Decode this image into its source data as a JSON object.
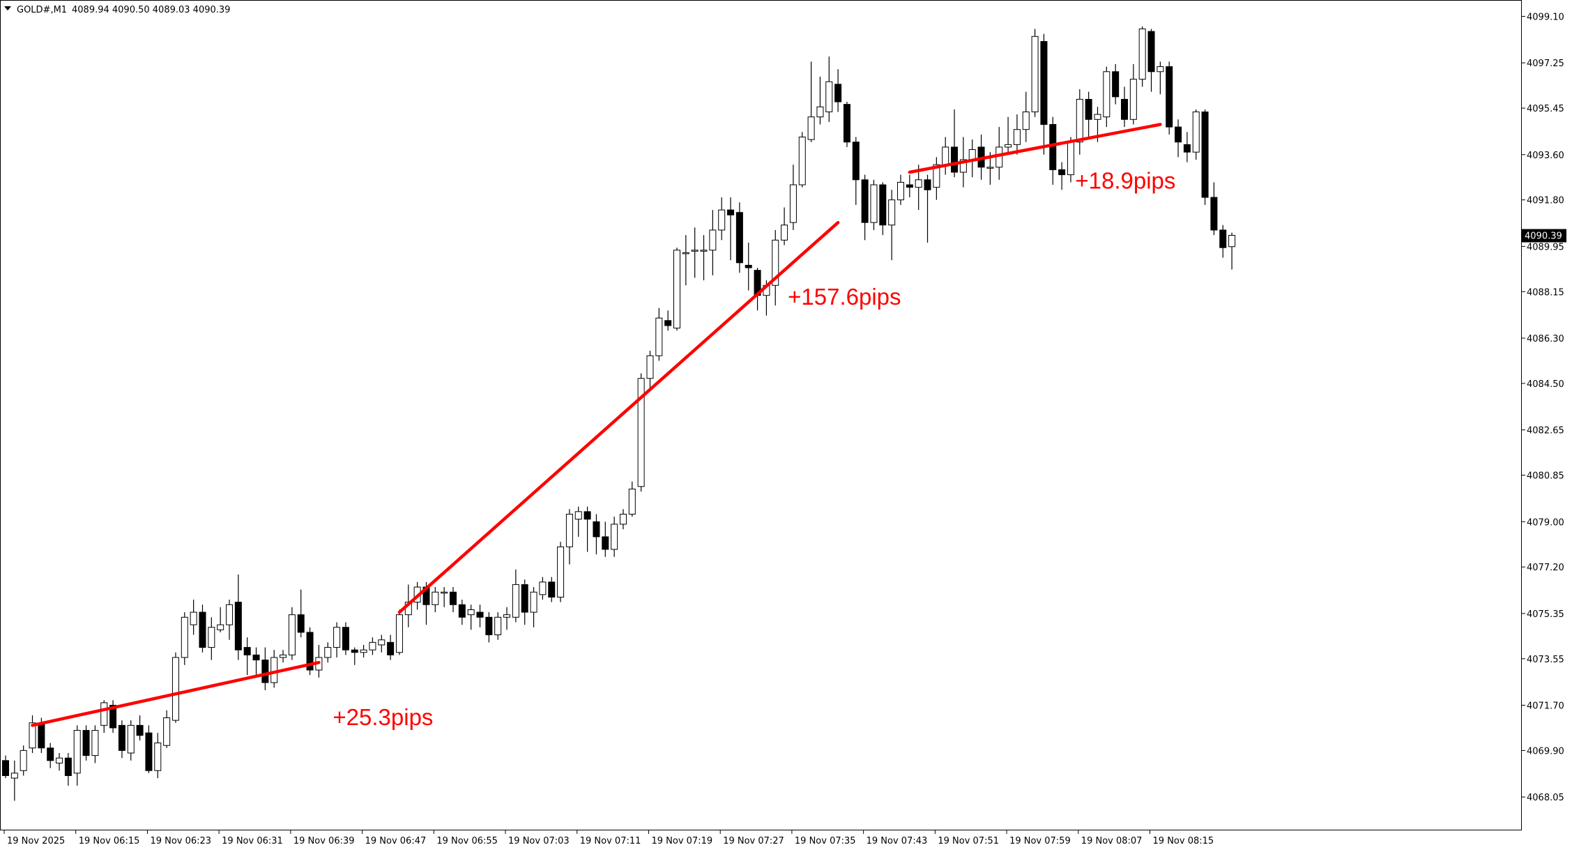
{
  "header": {
    "symbol": "GOLD#,M1",
    "ohlc": "4089.94 4090.50 4089.03 4090.39"
  },
  "current_price_label": "4090.39",
  "colors": {
    "background": "#ffffff",
    "candle_up_fill": "#ffffff",
    "candle_down_fill": "#000000",
    "candle_outline": "#000000",
    "annotation": "#ff0000",
    "current_price_tag": "#000000"
  },
  "chart_data": {
    "type": "candlestick",
    "timeframe": "M1",
    "ylim": [
      4066.75,
      4099.75
    ],
    "y_ticks": [
      "4099.10",
      "4097.25",
      "4095.45",
      "4093.60",
      "4091.80",
      "4089.95",
      "4088.15",
      "4086.30",
      "4084.50",
      "4082.65",
      "4080.85",
      "4079.00",
      "4077.20",
      "4075.35",
      "4073.55",
      "4071.70",
      "4069.90",
      "4068.05"
    ],
    "x_ticks": [
      {
        "label": "19 Nov 2025",
        "bar": 0
      },
      {
        "label": "19 Nov 06:15",
        "bar": 8
      },
      {
        "label": "19 Nov 06:23",
        "bar": 16
      },
      {
        "label": "19 Nov 06:31",
        "bar": 24
      },
      {
        "label": "19 Nov 06:39",
        "bar": 32
      },
      {
        "label": "19 Nov 06:47",
        "bar": 40
      },
      {
        "label": "19 Nov 06:55",
        "bar": 48
      },
      {
        "label": "19 Nov 07:03",
        "bar": 56
      },
      {
        "label": "19 Nov 07:11",
        "bar": 64
      },
      {
        "label": "19 Nov 07:19",
        "bar": 72
      },
      {
        "label": "19 Nov 07:27",
        "bar": 80
      },
      {
        "label": "19 Nov 07:35",
        "bar": 88
      },
      {
        "label": "19 Nov 07:43",
        "bar": 96
      },
      {
        "label": "19 Nov 07:51",
        "bar": 104
      },
      {
        "label": "19 Nov 07:59",
        "bar": 112
      },
      {
        "label": "19 Nov 08:07",
        "bar": 120
      },
      {
        "label": "19 Nov 08:15",
        "bar": 128
      }
    ],
    "candles": [
      [
        4069.5,
        4068.9,
        4069.7,
        4068.8
      ],
      [
        4068.8,
        4069.0,
        4069.5,
        4067.9
      ],
      [
        4069.1,
        4069.9,
        4070.1,
        4068.9
      ],
      [
        4070.0,
        4071.0,
        4071.3,
        4069.8
      ],
      [
        4071.0,
        4070.0,
        4071.2,
        4069.8
      ],
      [
        4070.0,
        4069.5,
        4070.2,
        4069.2
      ],
      [
        4069.4,
        4069.6,
        4069.8,
        4069.1
      ],
      [
        4069.6,
        4068.9,
        4069.8,
        4068.5
      ],
      [
        4069.0,
        4070.7,
        4070.9,
        4068.5
      ],
      [
        4070.7,
        4069.7,
        4070.9,
        4069.5
      ],
      [
        4069.7,
        4070.7,
        4070.9,
        4069.4
      ],
      [
        4070.9,
        4071.8,
        4071.9,
        4070.6
      ],
      [
        4071.7,
        4070.8,
        4071.9,
        4070.6
      ],
      [
        4070.9,
        4069.9,
        4071.1,
        4069.6
      ],
      [
        4069.8,
        4070.9,
        4071.1,
        4069.5
      ],
      [
        4070.9,
        4070.5,
        4071.3,
        4070.3
      ],
      [
        4070.6,
        4069.1,
        4070.9,
        4069.0
      ],
      [
        4069.1,
        4070.2,
        4070.6,
        4068.8
      ],
      [
        4070.1,
        4071.2,
        4071.5,
        4070.0
      ],
      [
        4071.1,
        4073.6,
        4073.8,
        4071.0
      ],
      [
        4073.6,
        4075.2,
        4075.4,
        4073.3
      ],
      [
        4074.9,
        4075.4,
        4075.9,
        4074.5
      ],
      [
        4075.4,
        4074.0,
        4075.7,
        4073.8
      ],
      [
        4074.0,
        4074.8,
        4075.2,
        4073.5
      ],
      [
        4074.7,
        4074.9,
        4075.6,
        4074.6
      ],
      [
        4074.9,
        4075.7,
        4075.9,
        4074.3
      ],
      [
        4075.8,
        4073.9,
        4076.9,
        4073.5
      ],
      [
        4074.0,
        4073.7,
        4074.4,
        4072.9
      ],
      [
        4073.7,
        4073.5,
        4074.0,
        4072.9
      ],
      [
        4073.5,
        4072.6,
        4074.0,
        4072.3
      ],
      [
        4072.6,
        4073.6,
        4073.9,
        4072.4
      ],
      [
        4073.6,
        4073.7,
        4073.9,
        4073.4
      ],
      [
        4073.7,
        4075.3,
        4075.6,
        4073.5
      ],
      [
        4075.3,
        4074.6,
        4076.3,
        4074.4
      ],
      [
        4074.6,
        4073.1,
        4074.8,
        4072.9
      ],
      [
        4073.1,
        4073.6,
        4074.1,
        4072.8
      ],
      [
        4073.6,
        4074.0,
        4074.2,
        4073.4
      ],
      [
        4074.0,
        4074.8,
        4075.0,
        4073.6
      ],
      [
        4074.8,
        4073.9,
        4075.0,
        4073.7
      ],
      [
        4073.9,
        4073.8,
        4074.0,
        4073.3
      ],
      [
        4073.8,
        4073.9,
        4074.1,
        4073.6
      ],
      [
        4073.9,
        4074.2,
        4074.4,
        4073.7
      ],
      [
        4074.1,
        4074.3,
        4074.5,
        4073.8
      ],
      [
        4074.2,
        4073.7,
        4074.5,
        4073.5
      ],
      [
        4073.8,
        4075.3,
        4075.5,
        4073.7
      ],
      [
        4075.3,
        4075.8,
        4076.5,
        4074.8
      ],
      [
        4075.8,
        4076.4,
        4076.6,
        4075.5
      ],
      [
        4076.4,
        4075.7,
        4076.6,
        4074.9
      ],
      [
        4075.7,
        4076.2,
        4076.4,
        4075.4
      ],
      [
        4076.2,
        4076.2,
        4076.4,
        4075.6
      ],
      [
        4076.2,
        4075.7,
        4076.4,
        4075.4
      ],
      [
        4075.7,
        4075.2,
        4075.9,
        4074.9
      ],
      [
        4075.3,
        4075.5,
        4075.7,
        4074.7
      ],
      [
        4075.4,
        4075.2,
        4075.7,
        4074.8
      ],
      [
        4075.2,
        4074.5,
        4075.4,
        4074.2
      ],
      [
        4074.5,
        4075.2,
        4075.4,
        4074.3
      ],
      [
        4075.2,
        4075.3,
        4075.6,
        4074.7
      ],
      [
        4075.2,
        4076.5,
        4077.1,
        4075.0
      ],
      [
        4076.5,
        4075.4,
        4076.7,
        4074.9
      ],
      [
        4075.4,
        4076.2,
        4076.4,
        4074.8
      ],
      [
        4076.1,
        4076.6,
        4076.8,
        4075.9
      ],
      [
        4076.6,
        4076.0,
        4076.8,
        4075.8
      ],
      [
        4076.0,
        4078.0,
        4078.2,
        4075.8
      ],
      [
        4078.0,
        4079.3,
        4079.5,
        4077.3
      ],
      [
        4079.1,
        4079.4,
        4079.6,
        4078.4
      ],
      [
        4079.4,
        4079.1,
        4079.6,
        4077.8
      ],
      [
        4079.0,
        4078.4,
        4079.3,
        4077.7
      ],
      [
        4078.4,
        4077.9,
        4079.0,
        4077.6
      ],
      [
        4077.9,
        4078.9,
        4079.2,
        4077.6
      ],
      [
        4078.9,
        4079.3,
        4079.5,
        4078.7
      ],
      [
        4079.3,
        4080.3,
        4080.6,
        4079.2
      ],
      [
        4080.4,
        4084.7,
        4084.9,
        4080.2
      ],
      [
        4084.7,
        4085.6,
        4085.8,
        4084.3
      ],
      [
        4085.6,
        4087.1,
        4087.5,
        4085.4
      ],
      [
        4087.0,
        4086.8,
        4087.4,
        4086.6
      ],
      [
        4086.7,
        4089.8,
        4089.9,
        4086.6
      ],
      [
        4089.7,
        4089.7,
        4090.4,
        4088.4
      ],
      [
        4089.8,
        4089.8,
        4090.7,
        4088.7
      ],
      [
        4089.8,
        4089.8,
        4090.4,
        4088.6
      ],
      [
        4089.8,
        4090.6,
        4091.4,
        4088.8
      ],
      [
        4090.6,
        4091.4,
        4091.9,
        4090.2
      ],
      [
        4091.4,
        4091.2,
        4091.9,
        4089.4
      ],
      [
        4091.3,
        4089.3,
        4091.7,
        4088.9
      ],
      [
        4089.2,
        4089.1,
        4090.1,
        4088.2
      ],
      [
        4089.0,
        4088.0,
        4089.1,
        4087.4
      ],
      [
        4088.0,
        4088.4,
        4088.6,
        4087.2
      ],
      [
        4088.4,
        4090.2,
        4090.6,
        4087.6
      ],
      [
        4090.2,
        4090.8,
        4091.5,
        4090.0
      ],
      [
        4090.9,
        4092.4,
        4093.2,
        4090.6
      ],
      [
        4092.4,
        4094.3,
        4094.5,
        4092.3
      ],
      [
        4094.2,
        4095.1,
        4097.3,
        4094.1
      ],
      [
        4095.1,
        4095.5,
        4096.7,
        4094.8
      ],
      [
        4095.3,
        4096.5,
        4097.5,
        4094.9
      ],
      [
        4096.4,
        4095.7,
        4097.0,
        4095.3
      ],
      [
        4095.6,
        4094.1,
        4095.7,
        4093.9
      ],
      [
        4094.1,
        4092.6,
        4094.3,
        4091.6
      ],
      [
        4092.6,
        4090.9,
        4092.8,
        4090.2
      ],
      [
        4090.9,
        4092.4,
        4092.6,
        4090.6
      ],
      [
        4092.4,
        4090.8,
        4092.5,
        4090.4
      ],
      [
        4090.8,
        4091.8,
        4092.2,
        4089.4
      ],
      [
        4091.8,
        4092.5,
        4092.8,
        4091.6
      ],
      [
        4092.4,
        4092.3,
        4092.8,
        4091.9
      ],
      [
        4092.3,
        4092.6,
        4093.2,
        4091.4
      ],
      [
        4092.6,
        4092.2,
        4092.8,
        4090.1
      ],
      [
        4092.3,
        4093.2,
        4093.5,
        4091.8
      ],
      [
        4093.2,
        4093.9,
        4094.3,
        4092.8
      ],
      [
        4093.9,
        4092.9,
        4095.4,
        4092.7
      ],
      [
        4092.9,
        4093.4,
        4094.3,
        4092.3
      ],
      [
        4093.4,
        4093.8,
        4094.2,
        4092.7
      ],
      [
        4093.9,
        4093.1,
        4094.4,
        4092.6
      ],
      [
        4093.1,
        4093.1,
        4093.7,
        4092.4
      ],
      [
        4093.1,
        4093.9,
        4094.7,
        4092.6
      ],
      [
        4093.9,
        4094.0,
        4095.1,
        4093.6
      ],
      [
        4094.0,
        4094.6,
        4095.2,
        4093.6
      ],
      [
        4094.6,
        4095.3,
        4096.1,
        4094.1
      ],
      [
        4095.3,
        4098.3,
        4098.6,
        4095.1
      ],
      [
        4098.1,
        4094.8,
        4098.4,
        4093.6
      ],
      [
        4094.8,
        4093.0,
        4095.1,
        4092.4
      ],
      [
        4093.0,
        4092.8,
        4093.3,
        4092.2
      ],
      [
        4092.8,
        4094.1,
        4094.3,
        4092.5
      ],
      [
        4094.1,
        4095.8,
        4096.2,
        4093.6
      ],
      [
        4095.8,
        4095.0,
        4096.1,
        4094.2
      ],
      [
        4095.0,
        4095.2,
        4095.5,
        4094.1
      ],
      [
        4095.1,
        4096.9,
        4097.1,
        4094.7
      ],
      [
        4096.9,
        4095.9,
        4097.2,
        4095.6
      ],
      [
        4095.8,
        4095.0,
        4096.3,
        4094.7
      ],
      [
        4095.0,
        4096.6,
        4097.2,
        4094.8
      ],
      [
        4096.6,
        4098.6,
        4098.7,
        4096.3
      ],
      [
        4098.5,
        4096.9,
        4098.6,
        4096.1
      ],
      [
        4096.9,
        4097.1,
        4097.3,
        4096.0
      ],
      [
        4097.1,
        4094.7,
        4097.3,
        4094.4
      ],
      [
        4094.7,
        4094.1,
        4095.0,
        4093.5
      ],
      [
        4094.0,
        4093.7,
        4094.5,
        4093.3
      ],
      [
        4093.7,
        4095.3,
        4095.4,
        4093.4
      ],
      [
        4095.3,
        4091.9,
        4095.4,
        4091.6
      ],
      [
        4091.9,
        4090.6,
        4092.5,
        4090.4
      ],
      [
        4090.6,
        4089.9,
        4090.8,
        4089.5
      ],
      [
        4089.94,
        4090.39,
        4090.5,
        4089.03
      ]
    ],
    "annotations": [
      {
        "label": "+25.3pips",
        "from": {
          "bar": 3,
          "price": 4070.9
        },
        "to": {
          "bar": 35,
          "price": 4073.4
        }
      },
      {
        "label": "+157.6pips",
        "from": {
          "bar": 44,
          "price": 4075.4
        },
        "to": {
          "bar": 93,
          "price": 4090.9
        }
      },
      {
        "label": "+18.9pips",
        "from": {
          "bar": 101,
          "price": 4092.9
        },
        "to": {
          "bar": 129,
          "price": 4094.8
        }
      }
    ]
  }
}
